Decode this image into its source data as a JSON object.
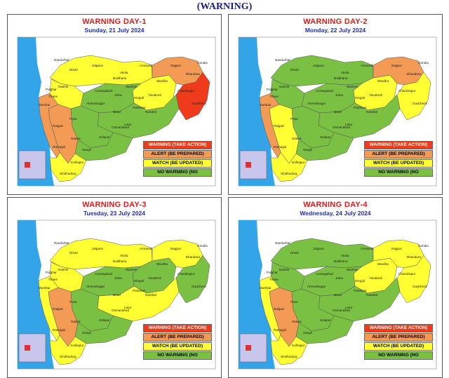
{
  "page": {
    "title": "(WARNING)"
  },
  "legend": {
    "warning": "WARNING (TAKE ACTION)",
    "alert": "ALERT (BE PREPARED)",
    "watch": "WATCH (BE UPDATED)",
    "none": "NO WARNING (NO"
  },
  "colors": {
    "warning": "#ef3a1c",
    "alert": "#f39a55",
    "watch": "#ffff33",
    "none": "#7ac043",
    "sea": "#33a4e8",
    "inset": "#c9c6ee"
  },
  "districts": [
    "Mumbai",
    "Pune",
    "Satara",
    "Nashik",
    "Jalgaon",
    "Dhule",
    "Akola",
    "Amravati",
    "Wardha",
    "Nagpur",
    "Bhandara",
    "Gondia",
    "Chandrapur",
    "Gadchiroli",
    "Yavatmal",
    "Jalna",
    "Beed",
    "Latur",
    "Nanded",
    "Parbhani",
    "Hingoli",
    "Buldhana",
    "Washim",
    "Aurangabad",
    "Ahmednagar",
    "Solapur",
    "Sangli",
    "Kolhapur",
    "Raigad",
    "Ratnagiri",
    "Thane",
    "Palghar",
    "Osmanabad",
    "Sindhudurg",
    "Nandurbar"
  ],
  "days": [
    {
      "title": "WARNING DAY-1",
      "date": "Sunday,  21 July 2024",
      "zones": {
        "north": "watch",
        "vidarbha_w": "watch",
        "vidarbha_e": "alert",
        "gadchiroli": "warning",
        "marathwada_n": "none",
        "marathwada_s": "none",
        "coast": "alert",
        "ghat": "alert",
        "interior_w": "none",
        "south_int": "none",
        "nashik": "watch",
        "kokan_s": "watch"
      }
    },
    {
      "title": "WARNING DAY-2",
      "date": "Monday,  22 July 2024",
      "zones": {
        "north": "none",
        "vidarbha_w": "watch",
        "vidarbha_e": "alert",
        "gadchiroli": "watch",
        "marathwada_n": "none",
        "marathwada_s": "none",
        "coast": "alert",
        "ghat": "watch",
        "interior_w": "none",
        "south_int": "none",
        "nashik": "none",
        "kokan_s": "watch"
      }
    },
    {
      "title": "WARNING DAY-3",
      "date": "Tuesday,  23 July 2024",
      "zones": {
        "north": "watch",
        "vidarbha_w": "none",
        "vidarbha_e": "watch",
        "gadchiroli": "none",
        "marathwada_n": "none",
        "marathwada_s": "watch",
        "coast": "watch",
        "ghat": "alert",
        "interior_w": "none",
        "south_int": "none",
        "nashik": "watch",
        "kokan_s": "watch"
      }
    },
    {
      "title": "WARNING DAY-4",
      "date": "Wednesday,  24 July 2024",
      "zones": {
        "north": "none",
        "vidarbha_w": "watch",
        "vidarbha_e": "watch",
        "gadchiroli": "watch",
        "marathwada_n": "none",
        "marathwada_s": "none",
        "coast": "watch",
        "ghat": "alert",
        "interior_w": "none",
        "south_int": "none",
        "nashik": "none",
        "kokan_s": "watch"
      }
    }
  ]
}
